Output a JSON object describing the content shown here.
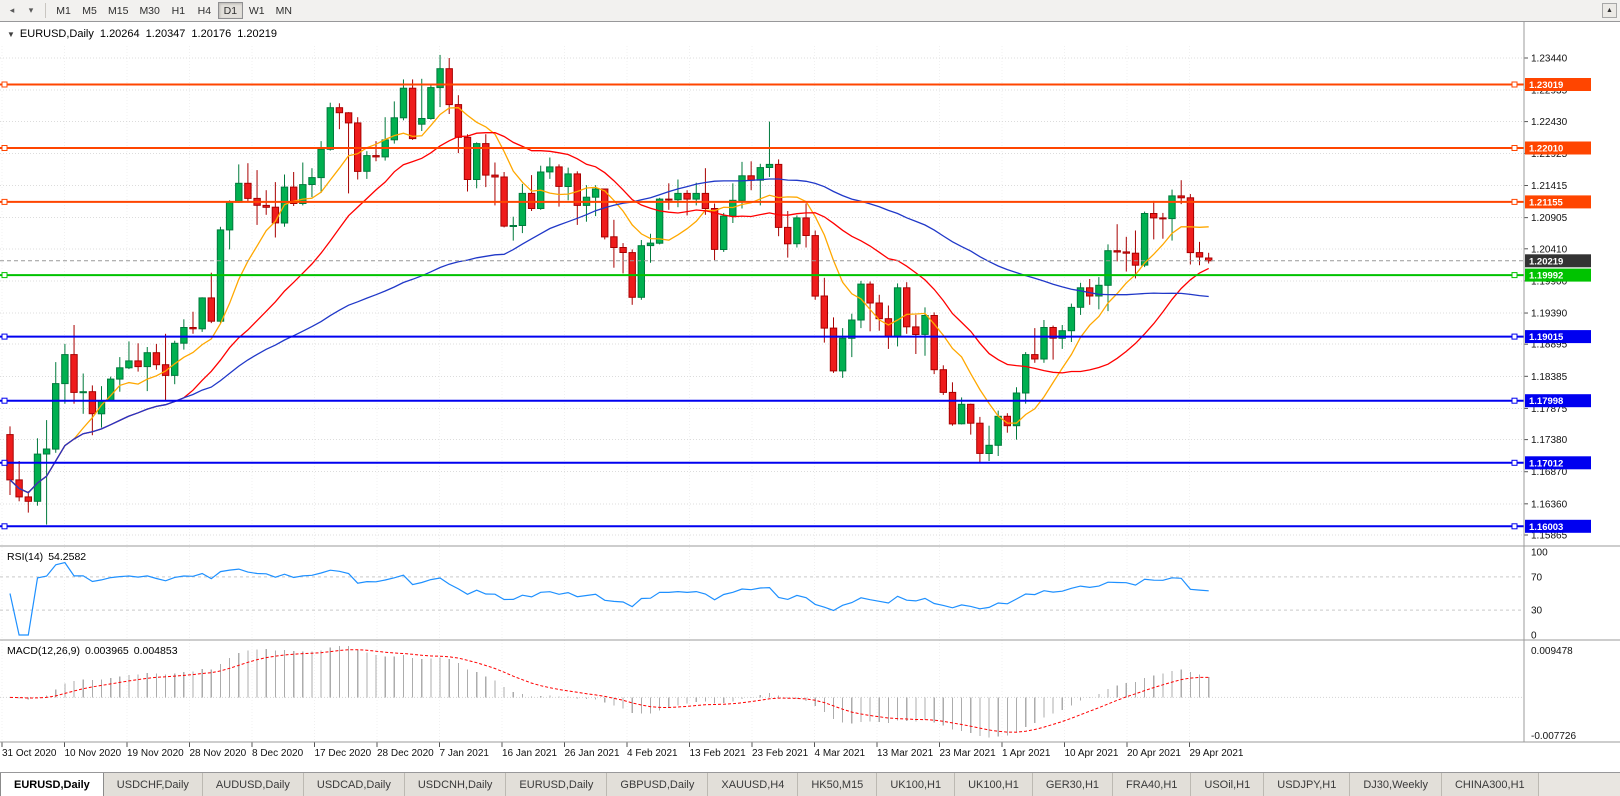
{
  "toolbar": {
    "left_icons": [
      {
        "name": "chart-shift-icon",
        "glyph": "◂"
      },
      {
        "name": "dropdown-icon",
        "glyph": "▾"
      }
    ],
    "timeframes": [
      {
        "label": "M1",
        "active": false
      },
      {
        "label": "M5",
        "active": false
      },
      {
        "label": "M15",
        "active": false
      },
      {
        "label": "M30",
        "active": false
      },
      {
        "label": "H1",
        "active": false
      },
      {
        "label": "H4",
        "active": false
      },
      {
        "label": "D1",
        "active": true
      },
      {
        "label": "W1",
        "active": false
      },
      {
        "label": "MN",
        "active": false
      }
    ],
    "scroll_up_glyph": "▲"
  },
  "chart": {
    "collapse_glyph": "▼",
    "symbol_label": "EURUSD,Daily",
    "open": "1.20264",
    "high": "1.20347",
    "low": "1.20176",
    "close": "1.20219"
  },
  "price_axis": {
    "ticks": [
      "1.23440",
      "1.22935",
      "1.22430",
      "1.21925",
      "1.21415",
      "1.20905",
      "1.20410",
      "1.19900",
      "1.19390",
      "1.18895",
      "1.18385",
      "1.17875",
      "1.17380",
      "1.16870",
      "1.16360",
      "1.15865"
    ],
    "current_price": {
      "value": 1.20219,
      "label": "1.20219",
      "badge_color": "#333333",
      "line_color": "#999999"
    }
  },
  "hlines": [
    {
      "label": "1.23019",
      "value": 1.23019,
      "color": "#FF4500"
    },
    {
      "label": "1.22010",
      "value": 1.2201,
      "color": "#FF4500"
    },
    {
      "label": "1.21155",
      "value": 1.21155,
      "color": "#FF4500"
    },
    {
      "label": "1.19992",
      "value": 1.19992,
      "color": "#00C300"
    },
    {
      "label": "1.19015",
      "value": 1.19015,
      "color": "#0000F0"
    },
    {
      "label": "1.17998",
      "value": 1.17998,
      "color": "#0000F0"
    },
    {
      "label": "1.17012",
      "value": 1.17012,
      "color": "#0000F0"
    },
    {
      "label": "1.16003",
      "value": 1.16003,
      "color": "#0000F0"
    }
  ],
  "rsi": {
    "name": "RSI(14)",
    "value": "54.2582",
    "period": 14,
    "levels": [
      "100",
      "70",
      "30",
      "0"
    ],
    "color": "#1E90FF"
  },
  "macd": {
    "name": "MACD(12,26,9)",
    "value_main": "0.003965",
    "value_signal": "0.004853",
    "fast": 12,
    "slow": 26,
    "signal": 9,
    "axis_max": "0.009478",
    "axis_min": "-0.007726",
    "hist_color": "#ACACAC",
    "signal_color": "#FF0000"
  },
  "chart_data": {
    "type": "candlestick",
    "title": "EURUSD Daily",
    "price_range": {
      "max": 1.2344,
      "min": 1.15865
    },
    "x_labels": [
      "31 Oct 2020",
      "10 Nov 2020",
      "19 Nov 2020",
      "28 Nov 2020",
      "8 Dec 2020",
      "17 Dec 2020",
      "28 Dec 2020",
      "7 Jan 2021",
      "16 Jan 2021",
      "26 Jan 2021",
      "4 Feb 2021",
      "13 Feb 2021",
      "23 Feb 2021",
      "4 Mar 2021",
      "13 Mar 2021",
      "23 Mar 2021",
      "1 Apr 2021",
      "10 Apr 2021",
      "20 Apr 2021",
      "29 Apr 2021"
    ],
    "moving_averages": [
      {
        "period": 8,
        "color": "#FFA800"
      },
      {
        "period": 20,
        "color": "#FF0000"
      },
      {
        "period": 55,
        "color": "#2038C8"
      }
    ],
    "colors": {
      "up": "#00B050",
      "up_border": "#007A3C",
      "down": "#EE1C1C",
      "down_border": "#A80000"
    },
    "candles": [
      [
        1.1746,
        1.1759,
        1.165,
        1.1674
      ],
      [
        1.1674,
        1.1704,
        1.164,
        1.1647
      ],
      [
        1.1647,
        1.1656,
        1.1622,
        1.164
      ],
      [
        1.164,
        1.174,
        1.1633,
        1.1715
      ],
      [
        1.1715,
        1.1769,
        1.1603,
        1.1723
      ],
      [
        1.1723,
        1.1861,
        1.1717,
        1.1827
      ],
      [
        1.1827,
        1.189,
        1.1795,
        1.1873
      ],
      [
        1.1873,
        1.192,
        1.1795,
        1.1813
      ],
      [
        1.1813,
        1.1843,
        1.1779,
        1.1814
      ],
      [
        1.1814,
        1.1824,
        1.1745,
        1.1779
      ],
      [
        1.1779,
        1.1823,
        1.1757,
        1.18
      ],
      [
        1.18,
        1.1838,
        1.1799,
        1.1834
      ],
      [
        1.1834,
        1.1869,
        1.1814,
        1.1852
      ],
      [
        1.1852,
        1.1894,
        1.185,
        1.1863
      ],
      [
        1.1863,
        1.1891,
        1.1846,
        1.1854
      ],
      [
        1.1854,
        1.1885,
        1.1815,
        1.1876
      ],
      [
        1.1876,
        1.189,
        1.1849,
        1.1857
      ],
      [
        1.1857,
        1.1906,
        1.18,
        1.184
      ],
      [
        1.184,
        1.1895,
        1.1826,
        1.1891
      ],
      [
        1.1891,
        1.1929,
        1.1881,
        1.1916
      ],
      [
        1.1916,
        1.1941,
        1.1906,
        1.1914
      ],
      [
        1.1914,
        1.1964,
        1.1909,
        1.1963
      ],
      [
        1.1963,
        1.2003,
        1.1923,
        1.1926
      ],
      [
        1.1926,
        1.2076,
        1.1923,
        1.2071
      ],
      [
        1.2071,
        1.2118,
        1.204,
        1.2115
      ],
      [
        1.2115,
        1.2175,
        1.2114,
        1.2145
      ],
      [
        1.2145,
        1.2177,
        1.2116,
        1.2121
      ],
      [
        1.2121,
        1.2166,
        1.2079,
        1.211
      ],
      [
        1.211,
        1.2134,
        1.2095,
        1.2107
      ],
      [
        1.2107,
        1.2147,
        1.2059,
        1.2082
      ],
      [
        1.2082,
        1.2159,
        1.2076,
        1.2139
      ],
      [
        1.2139,
        1.2163,
        1.2109,
        1.2113
      ],
      [
        1.2113,
        1.2178,
        1.211,
        1.2143
      ],
      [
        1.2143,
        1.2169,
        1.2123,
        1.2154
      ],
      [
        1.2154,
        1.2212,
        1.213,
        1.2199
      ],
      [
        1.2199,
        1.2273,
        1.2197,
        1.2265
      ],
      [
        1.2265,
        1.2272,
        1.2231,
        1.2257
      ],
      [
        1.2257,
        1.2258,
        1.2129,
        1.2241
      ],
      [
        1.2241,
        1.225,
        1.2151,
        1.2164
      ],
      [
        1.2164,
        1.2196,
        1.2152,
        1.2189
      ],
      [
        1.2189,
        1.2212,
        1.218,
        1.2187
      ],
      [
        1.2187,
        1.225,
        1.2181,
        1.2214
      ],
      [
        1.2214,
        1.2275,
        1.2208,
        1.2249
      ],
      [
        1.2249,
        1.231,
        1.2245,
        1.2296
      ],
      [
        1.2296,
        1.231,
        1.2214,
        1.2216
      ],
      [
        1.2239,
        1.2311,
        1.2228,
        1.2248
      ],
      [
        1.2248,
        1.2303,
        1.2246,
        1.2297
      ],
      [
        1.2297,
        1.2349,
        1.2266,
        1.2327
      ],
      [
        1.2327,
        1.2344,
        1.2255,
        1.227
      ],
      [
        1.227,
        1.2285,
        1.2193,
        1.2218
      ],
      [
        1.2218,
        1.2223,
        1.2132,
        1.2151
      ],
      [
        1.2151,
        1.221,
        1.2137,
        1.2208
      ],
      [
        1.2208,
        1.2223,
        1.2139,
        1.2158
      ],
      [
        1.2158,
        1.2178,
        1.211,
        1.2155
      ],
      [
        1.2155,
        1.2163,
        1.2075,
        1.2077
      ],
      [
        1.2077,
        1.2092,
        1.2054,
        1.2078
      ],
      [
        1.2078,
        1.2144,
        1.2066,
        1.2129
      ],
      [
        1.2129,
        1.2158,
        1.2101,
        1.2105
      ],
      [
        1.2105,
        1.2173,
        1.2103,
        1.2163
      ],
      [
        1.2163,
        1.2186,
        1.2152,
        1.2171
      ],
      [
        1.2171,
        1.2175,
        1.2108,
        1.214
      ],
      [
        1.214,
        1.217,
        1.2118,
        1.216
      ],
      [
        1.216,
        1.2164,
        1.2079,
        1.211
      ],
      [
        1.211,
        1.2142,
        1.2084,
        1.2123
      ],
      [
        1.2123,
        1.2142,
        1.2093,
        1.2136
      ],
      [
        1.2136,
        1.2136,
        1.2056,
        1.206
      ],
      [
        1.206,
        1.2087,
        1.2011,
        1.2043
      ],
      [
        1.2043,
        1.205,
        1.2002,
        1.2035
      ],
      [
        1.2035,
        1.204,
        1.1952,
        1.1964
      ],
      [
        1.1964,
        1.2055,
        1.196,
        1.2046
      ],
      [
        1.2046,
        1.2065,
        1.2019,
        1.205
      ],
      [
        1.205,
        1.2122,
        1.2048,
        1.212
      ],
      [
        1.212,
        1.2145,
        1.2103,
        1.2119
      ],
      [
        1.2119,
        1.2151,
        1.2107,
        1.2129
      ],
      [
        1.2129,
        1.2134,
        1.2094,
        1.212
      ],
      [
        1.212,
        1.2146,
        1.211,
        1.2129
      ],
      [
        1.2129,
        1.2169,
        1.2095,
        1.2105
      ],
      [
        1.2105,
        1.2113,
        1.2023,
        1.204
      ],
      [
        1.204,
        1.2098,
        1.2036,
        1.2093
      ],
      [
        1.2093,
        1.2145,
        1.2082,
        1.2118
      ],
      [
        1.2118,
        1.2179,
        1.2105,
        1.2157
      ],
      [
        1.2157,
        1.218,
        1.2134,
        1.215
      ],
      [
        1.215,
        1.2176,
        1.211,
        1.217
      ],
      [
        1.217,
        1.2243,
        1.2155,
        1.2175
      ],
      [
        1.2175,
        1.2183,
        1.2061,
        1.2075
      ],
      [
        1.2075,
        1.2101,
        1.2027,
        1.2049
      ],
      [
        1.2049,
        1.2094,
        1.2043,
        1.209
      ],
      [
        1.209,
        1.2113,
        1.2043,
        1.2062
      ],
      [
        1.2062,
        1.207,
        1.196,
        1.1966
      ],
      [
        1.1966,
        1.1995,
        1.1892,
        1.1915
      ],
      [
        1.1915,
        1.1932,
        1.1844,
        1.1847
      ],
      [
        1.1847,
        1.1915,
        1.1836,
        1.1899
      ],
      [
        1.1899,
        1.1938,
        1.1869,
        1.1928
      ],
      [
        1.1928,
        1.199,
        1.1915,
        1.1985
      ],
      [
        1.1985,
        1.1989,
        1.191,
        1.1955
      ],
      [
        1.1955,
        1.1968,
        1.1911,
        1.193
      ],
      [
        1.193,
        1.1951,
        1.1882,
        1.1901
      ],
      [
        1.1901,
        1.1986,
        1.1886,
        1.1979
      ],
      [
        1.1979,
        1.1988,
        1.1906,
        1.1917
      ],
      [
        1.1917,
        1.1936,
        1.1874,
        1.1905
      ],
      [
        1.1905,
        1.1948,
        1.1871,
        1.1935
      ],
      [
        1.1935,
        1.194,
        1.1842,
        1.1849
      ],
      [
        1.1849,
        1.1856,
        1.1809,
        1.1813
      ],
      [
        1.1813,
        1.1829,
        1.176,
        1.1763
      ],
      [
        1.1763,
        1.1805,
        1.1762,
        1.1794
      ],
      [
        1.1794,
        1.1795,
        1.1746,
        1.1764
      ],
      [
        1.1764,
        1.1774,
        1.1702,
        1.1716
      ],
      [
        1.1716,
        1.176,
        1.1704,
        1.1729
      ],
      [
        1.1729,
        1.1784,
        1.1712,
        1.1775
      ],
      [
        1.1775,
        1.178,
        1.1749,
        1.176
      ],
      [
        1.176,
        1.1821,
        1.1738,
        1.1812
      ],
      [
        1.1812,
        1.1877,
        1.1795,
        1.1873
      ],
      [
        1.1873,
        1.1915,
        1.186,
        1.1866
      ],
      [
        1.1866,
        1.1928,
        1.186,
        1.1916
      ],
      [
        1.1916,
        1.1919,
        1.1865,
        1.1899
      ],
      [
        1.1899,
        1.192,
        1.1882,
        1.1911
      ],
      [
        1.1911,
        1.1954,
        1.1893,
        1.1948
      ],
      [
        1.1948,
        1.1987,
        1.1936,
        1.1979
      ],
      [
        1.1979,
        1.1993,
        1.1952,
        1.1966
      ],
      [
        1.1966,
        1.1996,
        1.1945,
        1.1983
      ],
      [
        1.1983,
        1.2048,
        1.1942,
        1.2038
      ],
      [
        1.2038,
        1.208,
        1.2021,
        1.2036
      ],
      [
        1.2036,
        1.206,
        1.2005,
        1.2034
      ],
      [
        1.2034,
        1.207,
        1.1994,
        1.2015
      ],
      [
        1.2015,
        1.21,
        1.2012,
        1.2097
      ],
      [
        1.2097,
        1.2117,
        1.2056,
        1.209
      ],
      [
        1.209,
        1.2098,
        1.2057,
        1.2089
      ],
      [
        1.2089,
        1.2135,
        1.2054,
        1.2125
      ],
      [
        1.2125,
        1.215,
        1.2112,
        1.2122
      ],
      [
        1.2122,
        1.2128,
        1.2016,
        1.2035
      ],
      [
        1.2035,
        1.2052,
        1.2015,
        1.2028
      ],
      [
        1.20264,
        1.20347,
        1.20176,
        1.20219
      ]
    ]
  },
  "tabs": [
    {
      "label": "EURUSD,Daily",
      "active": true
    },
    {
      "label": "USDCHF,Daily",
      "active": false
    },
    {
      "label": "AUDUSD,Daily",
      "active": false
    },
    {
      "label": "USDCAD,Daily",
      "active": false
    },
    {
      "label": "USDCNH,Daily",
      "active": false
    },
    {
      "label": "EURUSD,Daily",
      "active": false
    },
    {
      "label": "GBPUSD,Daily",
      "active": false
    },
    {
      "label": "XAUUSD,H4",
      "active": false
    },
    {
      "label": "HK50,M15",
      "active": false
    },
    {
      "label": "UK100,H1",
      "active": false
    },
    {
      "label": "UK100,H1",
      "active": false
    },
    {
      "label": "GER30,H1",
      "active": false
    },
    {
      "label": "FRA40,H1",
      "active": false
    },
    {
      "label": "USOil,H1",
      "active": false
    },
    {
      "label": "USDJPY,H1",
      "active": false
    },
    {
      "label": "DJ30,Weekly",
      "active": false
    },
    {
      "label": "CHINA300,H1",
      "active": false
    }
  ]
}
